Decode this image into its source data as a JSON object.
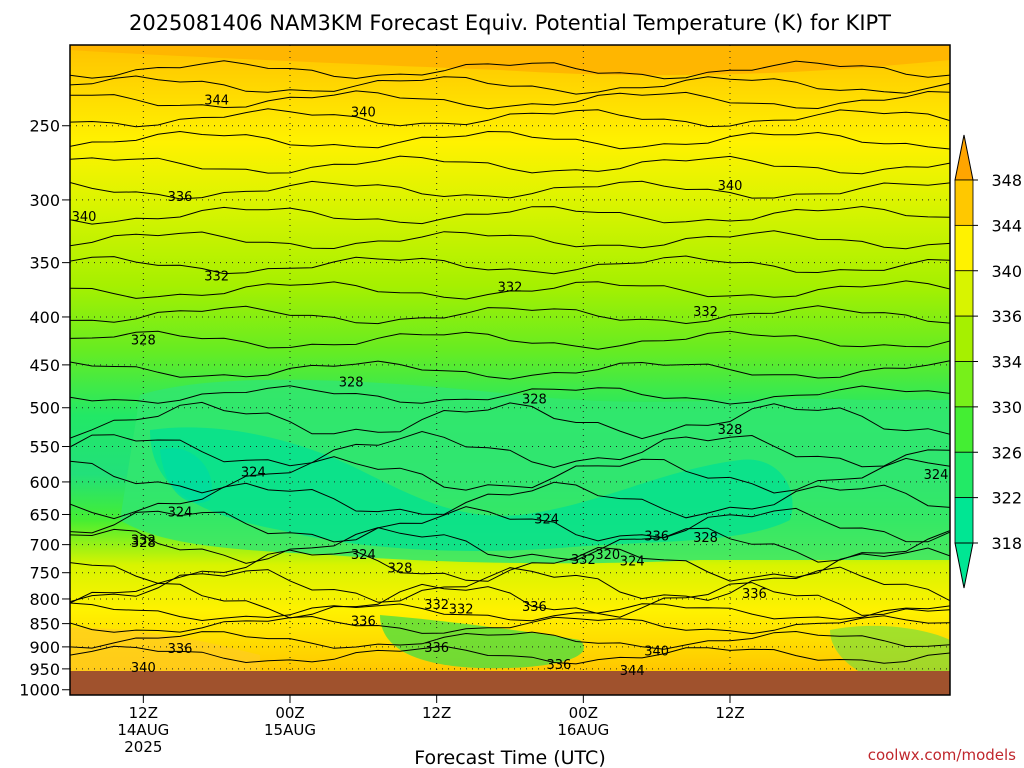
{
  "chart_data": {
    "type": "heatmap",
    "title": "2025081406 NAM3KM Forecast Equiv. Potential Temperature (K) for KIPT",
    "xlabel": "Forecast Time (UTC)",
    "ylabel": "",
    "source": "coolwx.com/models",
    "y_scale": "log",
    "y_reversed": true,
    "ylim": [
      1013,
      205
    ],
    "yticks": [
      250,
      300,
      350,
      400,
      450,
      500,
      550,
      600,
      650,
      700,
      750,
      800,
      850,
      900,
      950,
      1000
    ],
    "xlim": [
      "2025-08-14 06Z",
      "2025-08-17 06Z"
    ],
    "xticks": [
      {
        "time": "2025-08-14 12Z",
        "lines": [
          "12Z",
          "14AUG",
          "2025"
        ]
      },
      {
        "time": "2025-08-15 00Z",
        "lines": [
          "00Z",
          "15AUG"
        ]
      },
      {
        "time": "2025-08-15 12Z",
        "lines": [
          "12Z"
        ]
      },
      {
        "time": "2025-08-16 00Z",
        "lines": [
          "00Z",
          "16AUG"
        ]
      },
      {
        "time": "2025-08-16 12Z",
        "lines": [
          "12Z"
        ]
      }
    ],
    "colorbar": {
      "levels": [
        318,
        322,
        326,
        330,
        334,
        336,
        340,
        344,
        348
      ],
      "colors": [
        "#00e693",
        "#22ea66",
        "#44ee33",
        "#77f01a",
        "#a6f000",
        "#d8f400",
        "#fff200",
        "#ffc800",
        "#ffa500"
      ],
      "extend": "both"
    },
    "contour_labels": [
      {
        "time": "2025-08-14 18Z",
        "p": 235,
        "value": "344"
      },
      {
        "time": "2025-08-15 06Z",
        "p": 242,
        "value": "340"
      },
      {
        "time": "2025-08-16 12Z",
        "p": 290,
        "value": "340"
      },
      {
        "time": "2025-08-14 06Z",
        "p": 313,
        "value": "340"
      },
      {
        "time": "2025-08-14 15Z",
        "p": 298,
        "value": "336"
      },
      {
        "time": "2025-08-14 18Z",
        "p": 362,
        "value": "332"
      },
      {
        "time": "2025-08-15 18Z",
        "p": 372,
        "value": "332"
      },
      {
        "time": "2025-08-16 10Z",
        "p": 395,
        "value": "332"
      },
      {
        "time": "2025-08-14 12Z",
        "p": 424,
        "value": "328"
      },
      {
        "time": "2025-08-15 05Z",
        "p": 470,
        "value": "328"
      },
      {
        "time": "2025-08-15 20Z",
        "p": 490,
        "value": "328"
      },
      {
        "time": "2025-08-16 12Z",
        "p": 528,
        "value": "328"
      },
      {
        "time": "2025-08-17 06Z",
        "p": 590,
        "value": "324"
      },
      {
        "time": "2025-08-14 21Z",
        "p": 586,
        "value": "324"
      },
      {
        "time": "2025-08-14 15Z",
        "p": 647,
        "value": "324"
      },
      {
        "time": "2025-08-15 21Z",
        "p": 658,
        "value": "324"
      },
      {
        "time": "2025-08-14 12Z",
        "p": 693,
        "value": "332"
      },
      {
        "time": "2025-08-14 12Z",
        "p": 697,
        "value": "328"
      },
      {
        "time": "2025-08-15 06Z",
        "p": 718,
        "value": "324"
      },
      {
        "time": "2025-08-15 09Z",
        "p": 742,
        "value": "328"
      },
      {
        "time": "2025-08-15 12Z",
        "p": 812,
        "value": "332"
      },
      {
        "time": "2025-08-15 14Z",
        "p": 821,
        "value": "332"
      },
      {
        "time": "2025-08-15 06Z",
        "p": 846,
        "value": "336"
      },
      {
        "time": "2025-08-15 12Z",
        "p": 902,
        "value": "336"
      },
      {
        "time": "2025-08-14 15Z",
        "p": 905,
        "value": "336"
      },
      {
        "time": "2025-08-15 20Z",
        "p": 816,
        "value": "336"
      },
      {
        "time": "2025-08-15 22Z",
        "p": 941,
        "value": "336"
      },
      {
        "time": "2025-08-14 12Z",
        "p": 948,
        "value": "340"
      },
      {
        "time": "2025-08-16 02Z",
        "p": 718,
        "value": "320"
      },
      {
        "time": "2025-08-16 00Z",
        "p": 727,
        "value": "332"
      },
      {
        "time": "2025-08-16 04Z",
        "p": 730,
        "value": "324"
      },
      {
        "time": "2025-08-16 10Z",
        "p": 689,
        "value": "328"
      },
      {
        "time": "2025-08-16 06Z",
        "p": 686,
        "value": "336"
      },
      {
        "time": "2025-08-16 14Z",
        "p": 790,
        "value": "336"
      },
      {
        "time": "2025-08-16 06Z",
        "p": 910,
        "value": "340"
      },
      {
        "time": "2025-08-16 04Z",
        "p": 955,
        "value": "344"
      }
    ]
  }
}
